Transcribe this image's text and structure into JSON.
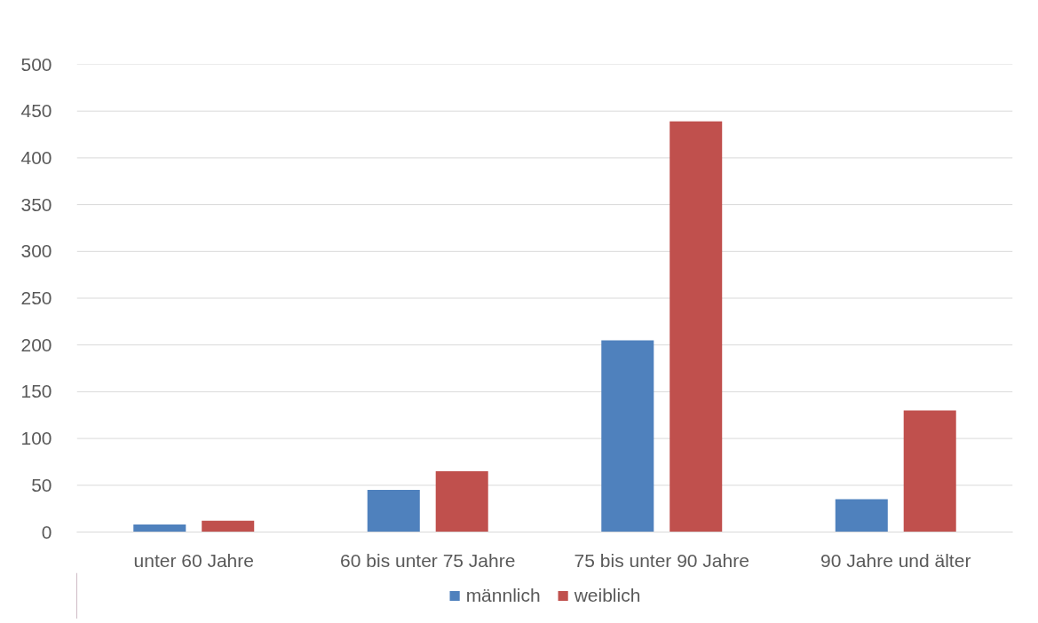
{
  "chart_data": {
    "type": "bar",
    "categories": [
      "unter 60 Jahre",
      "60 bis unter 75 Jahre",
      "75 bis unter 90 Jahre",
      "90 Jahre und älter"
    ],
    "series": [
      {
        "name": "männlich",
        "color": "#4f81bd",
        "values": [
          8,
          45,
          205,
          35
        ]
      },
      {
        "name": "weiblich",
        "color": "#c0504d",
        "values": [
          12,
          65,
          439,
          130
        ]
      }
    ],
    "ylim": [
      0,
      500
    ],
    "yticks": [
      0,
      50,
      100,
      150,
      200,
      250,
      300,
      350,
      400,
      450,
      500
    ],
    "grid": "y",
    "legend": "bottom"
  }
}
